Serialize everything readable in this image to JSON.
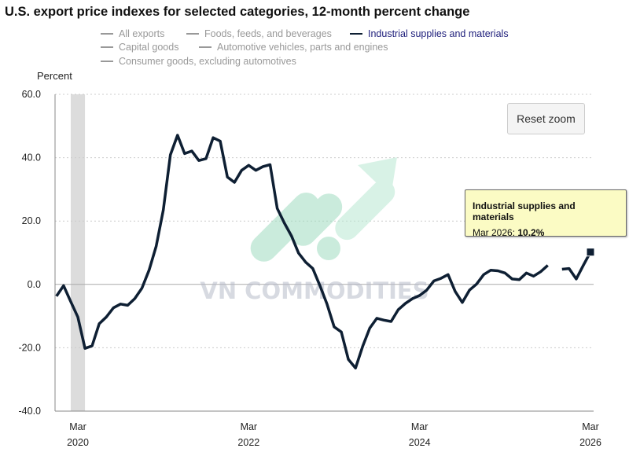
{
  "chart_data": {
    "type": "line",
    "title": "U.S. export price indexes for selected categories, 12-month percent change",
    "ylabel": "Percent",
    "ylim": [
      -40,
      60
    ],
    "yticks": [
      "60.0",
      "40.0",
      "20.0",
      "0.0",
      "-20.0",
      "-40.0"
    ],
    "ytick_values": [
      60,
      40,
      20,
      0,
      -20,
      -40
    ],
    "xticks": [
      {
        "month": "Mar",
        "year": "2020",
        "date": "2020-03"
      },
      {
        "month": "Mar",
        "year": "2022",
        "date": "2022-03"
      },
      {
        "month": "Mar",
        "year": "2024",
        "date": "2024-03"
      },
      {
        "month": "Mar",
        "year": "2026",
        "date": "2026-03"
      }
    ],
    "grid": true,
    "legend_position": "top",
    "legend": [
      {
        "name": "All exports",
        "visible": false
      },
      {
        "name": "Foods, feeds, and beverages",
        "visible": false
      },
      {
        "name": "Industrial supplies and materials",
        "visible": true
      },
      {
        "name": "Capital goods",
        "visible": false
      },
      {
        "name": "Automotive vehicles, parts and engines",
        "visible": false
      },
      {
        "name": "Consumer goods, excluding automotives",
        "visible": false
      }
    ],
    "recession_shading": {
      "start": "2020-02",
      "end": "2020-04"
    },
    "x_start": "2019-12",
    "series": [
      {
        "name": "Industrial supplies and materials",
        "color": "#0e1f33",
        "values": [
          -3.7,
          -0.4,
          -5.4,
          -10.3,
          -20.2,
          -19.4,
          -12.4,
          -10.3,
          -7.4,
          -6.2,
          -6.6,
          -4.5,
          -1.2,
          4.5,
          12.0,
          23.5,
          40.9,
          47.1,
          41.3,
          42.1,
          39.1,
          39.7,
          46.3,
          45.2,
          33.9,
          32.2,
          36.0,
          37.6,
          36.0,
          37.2,
          37.8,
          24.0,
          19.4,
          15.3,
          9.9,
          7.0,
          5.0,
          -0.4,
          -6.2,
          -13.4,
          -15.0,
          -23.7,
          -26.4,
          -19.6,
          -13.8,
          -10.7,
          -11.3,
          -11.7,
          -8.0,
          -6.0,
          -4.5,
          -3.5,
          -1.8,
          1.1,
          1.9,
          3.1,
          -2.2,
          -5.7,
          -1.8,
          0.1,
          3.1,
          4.5,
          4.3,
          3.6,
          1.7,
          1.5,
          3.6,
          2.6,
          4.0,
          6.0,
          null,
          4.8,
          5.0,
          1.7,
          6.0,
          10.2
        ]
      }
    ]
  },
  "reset_zoom_label": "Reset zoom",
  "tooltip": {
    "series": "Industrial supplies and materials",
    "date": "Mar 2026",
    "sep": ": ",
    "value": "10.2%"
  },
  "watermark": "VN COMMODITIES",
  "colors": {
    "line": "#0e1f33",
    "legend_inactive": "#999999",
    "legend_active_text": "#1d1d7a",
    "tooltip_bg": "#fbfbc4",
    "recession": "#dcdcdc",
    "watermark_green": "#9fdcc0",
    "watermark_text": "#c9ccd6"
  }
}
